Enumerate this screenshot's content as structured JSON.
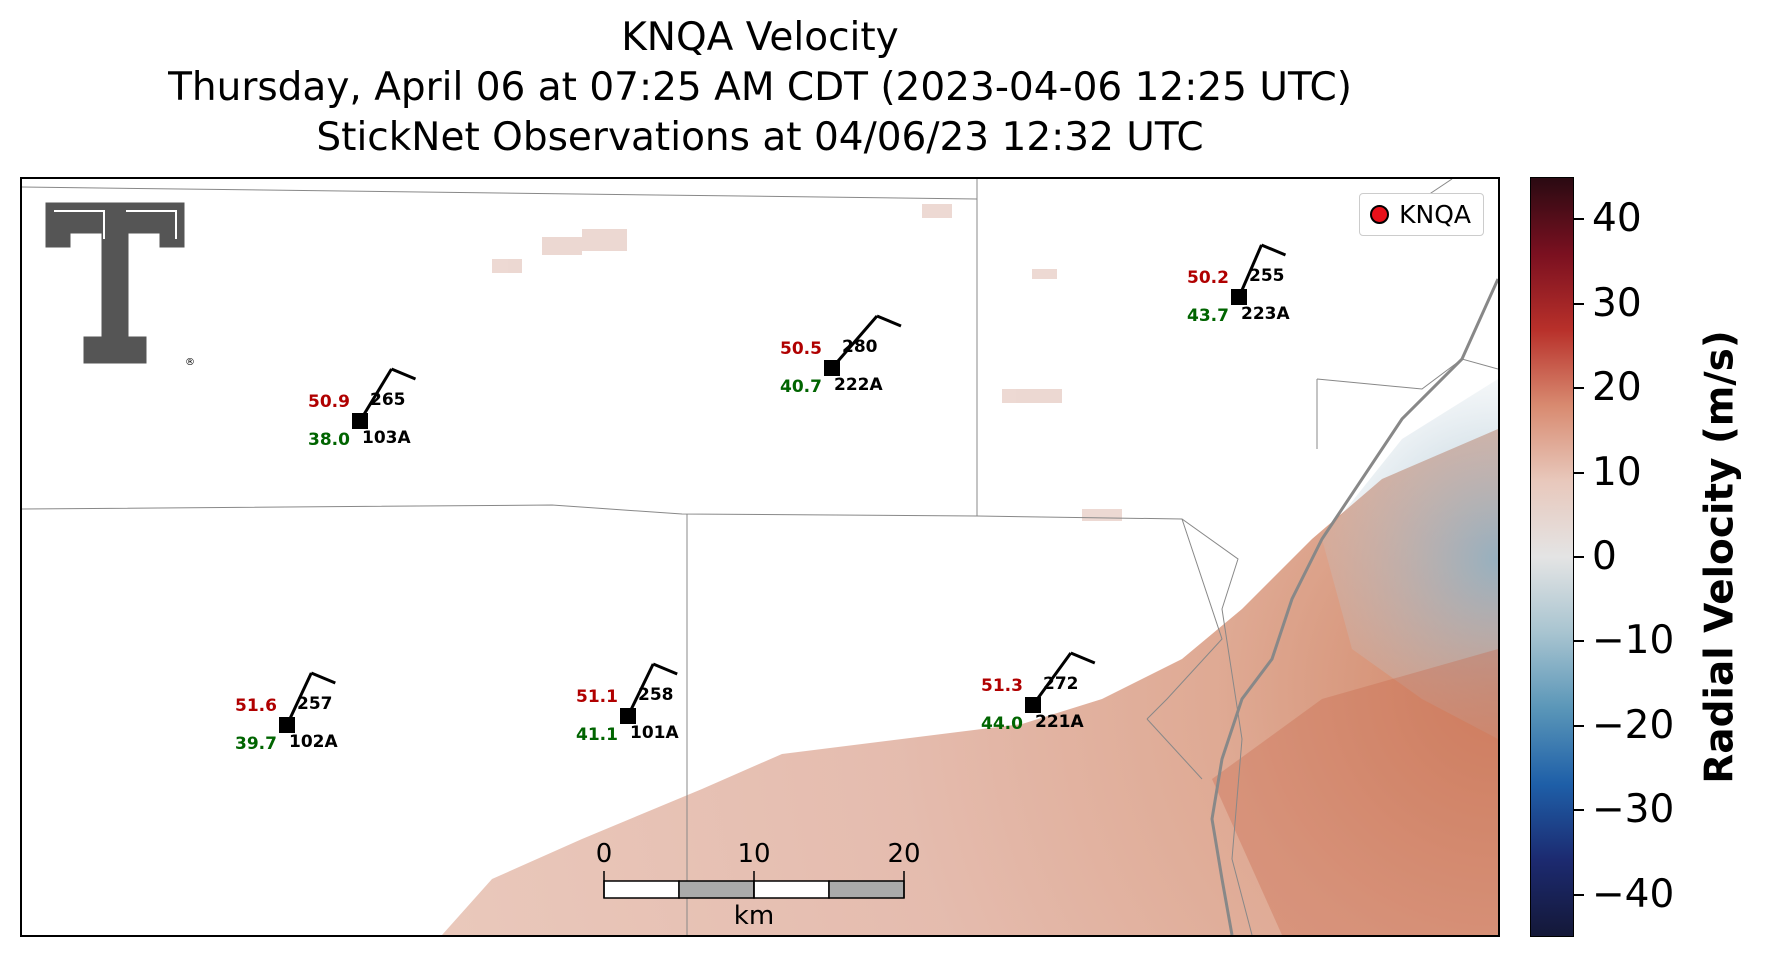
{
  "title": {
    "line1": "KNQA Velocity",
    "line2": "Thursday, April 06 at 07:25 AM CDT (2023-04-06 12:25 UTC)",
    "line3": "StickNet Observations at 04/06/23 12:32 UTC"
  },
  "logo": {
    "mark": "TT",
    "trademark": "®"
  },
  "legend": {
    "label": "KNQA",
    "marker_color": "#e8101a"
  },
  "colorbar": {
    "title": "Radial Velocity (m/s)",
    "ticks": [
      "40",
      "30",
      "20",
      "10",
      "0",
      "−10",
      "−20",
      "−30",
      "−40"
    ],
    "range": [
      -45,
      45
    ],
    "colors": [
      "#2a0a12",
      "#7a1020",
      "#b8302a",
      "#d88a70",
      "#e8c8bc",
      "#e4e4e4",
      "#a8c4d0",
      "#5a96b8",
      "#1e5fa8",
      "#1c2a70",
      "#141838"
    ]
  },
  "scale_bar": {
    "ticks": [
      "0",
      "10",
      "20"
    ],
    "unit": "km"
  },
  "stations": [
    {
      "id": "103A",
      "temp": "50.9",
      "dew": "38.0",
      "dir": "265"
    },
    {
      "id": "222A",
      "temp": "50.5",
      "dew": "40.7",
      "dir": "280"
    },
    {
      "id": "223A",
      "temp": "50.2",
      "dew": "43.7",
      "dir": "255"
    },
    {
      "id": "102A",
      "temp": "51.6",
      "dew": "39.7",
      "dir": "257"
    },
    {
      "id": "101A",
      "temp": "51.1",
      "dew": "41.1",
      "dir": "258"
    },
    {
      "id": "221A",
      "temp": "51.3",
      "dew": "44.0",
      "dir": "272"
    }
  ],
  "colors": {
    "temp": "#b00000",
    "dew": "#006400",
    "station": "#000000"
  }
}
